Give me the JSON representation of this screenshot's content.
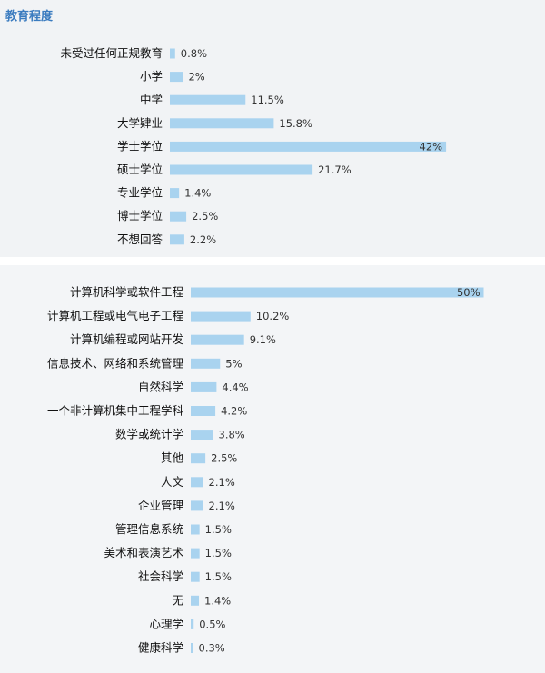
{
  "section_title": "教育程度",
  "colors": {
    "bar": "#a9d3ef",
    "bar_edge": "#8cc2e6",
    "title": "#3a7bbf"
  },
  "chart_data": [
    {
      "type": "bar",
      "orientation": "horizontal",
      "title": "教育程度",
      "categories": [
        "未受过任何正规教育",
        "小学",
        "中学",
        "大学肄业",
        "学士学位",
        "硕士学位",
        "专业学位",
        "博士学位",
        "不想回答"
      ],
      "values": [
        0.8,
        2,
        11.5,
        15.8,
        42,
        21.7,
        1.4,
        2.5,
        2.2
      ],
      "value_labels": [
        "0.8%",
        "2%",
        "11.5%",
        "15.8%",
        "42%",
        "21.7%",
        "1.4%",
        "2.5%",
        "2.2%"
      ],
      "unit": "%"
    },
    {
      "type": "bar",
      "orientation": "horizontal",
      "title": "",
      "categories": [
        "计算机科学或软件工程",
        "计算机工程或电气电子工程",
        "计算机编程或网站开发",
        "信息技术、网络和系统管理",
        "自然科学",
        "一个非计算机集中工程学科",
        "数学或统计学",
        "其他",
        "人文",
        "企业管理",
        "管理信息系统",
        "美术和表演艺术",
        "社会科学",
        "无",
        "心理学",
        "健康科学"
      ],
      "values": [
        50,
        10.2,
        9.1,
        5,
        4.4,
        4.2,
        3.8,
        2.5,
        2.1,
        2.1,
        1.5,
        1.5,
        1.5,
        1.4,
        0.5,
        0.3
      ],
      "value_labels": [
        "50%",
        "10.2%",
        "9.1%",
        "5%",
        "4.4%",
        "4.2%",
        "3.8%",
        "2.5%",
        "2.1%",
        "2.1%",
        "1.5%",
        "1.5%",
        "1.5%",
        "1.4%",
        "0.5%",
        "0.3%"
      ],
      "unit": "%"
    }
  ]
}
